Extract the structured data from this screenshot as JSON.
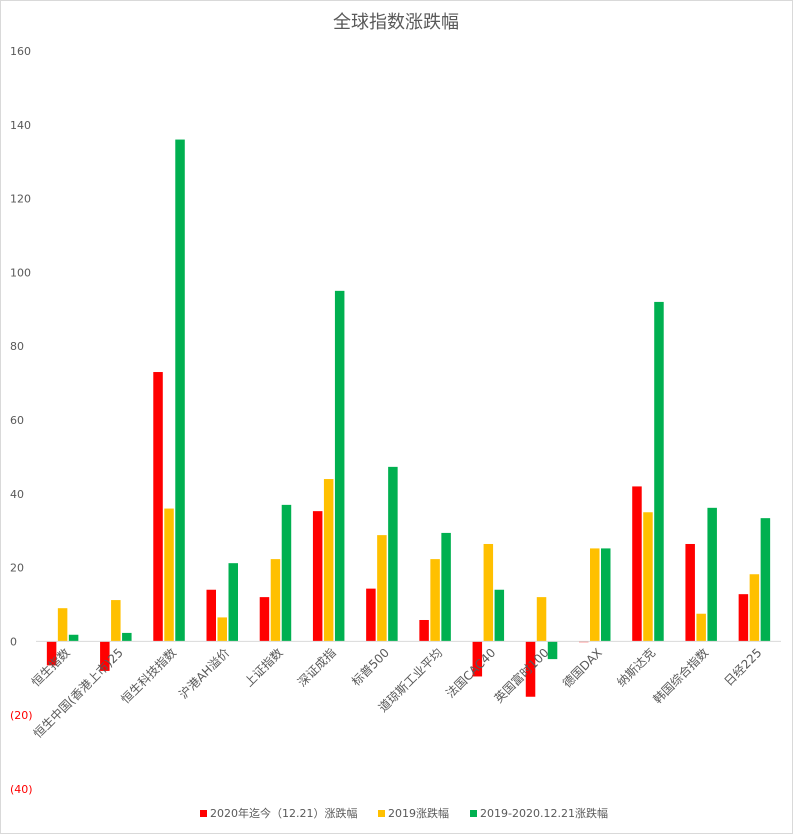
{
  "chart_data": {
    "type": "bar",
    "title": "全球指数涨跌幅",
    "categories": [
      "恒生指数",
      "恒生中国(香港上市)25",
      "恒生科技指数",
      "沪港AH溢价",
      "上证指数",
      "深证成指",
      "标普500",
      "道琼斯工业平均",
      "法国CAC40",
      "英国富时100",
      "德国DAX",
      "纳斯达克",
      "韩国综合指数",
      "日经225"
    ],
    "series": [
      {
        "name": "2020年迄今（12.21）涨跌幅",
        "color": "#ff0000",
        "values": [
          -6.5,
          -8,
          73,
          14,
          12,
          35.3,
          14.3,
          5.8,
          -9.5,
          -15,
          -0.2,
          42,
          26.4,
          12.8
        ]
      },
      {
        "name": "2019涨跌幅",
        "color": "#ffc000",
        "values": [
          9,
          11.2,
          36,
          6.5,
          22.3,
          44,
          28.8,
          22.3,
          26.4,
          12,
          25.2,
          35,
          7.5,
          18.2
        ]
      },
      {
        "name": "2019-2020.12.21涨跌幅",
        "color": "#00b050",
        "values": [
          1.8,
          2.3,
          136,
          21.2,
          37,
          95,
          47.3,
          29.4,
          14,
          -4.8,
          25.2,
          92,
          36.2,
          33.4
        ]
      }
    ],
    "ylim": [
      -40,
      160
    ],
    "yticks": [
      {
        "value": 160,
        "label": "160"
      },
      {
        "value": 140,
        "label": "140"
      },
      {
        "value": 120,
        "label": "120"
      },
      {
        "value": 100,
        "label": "100"
      },
      {
        "value": 80,
        "label": "80"
      },
      {
        "value": 60,
        "label": "60"
      },
      {
        "value": 40,
        "label": "40"
      },
      {
        "value": 20,
        "label": "20"
      },
      {
        "value": 0,
        "label": "0"
      },
      {
        "value": -20,
        "label": "(20)"
      },
      {
        "value": -40,
        "label": "(40)"
      }
    ],
    "negative_tick_color": "#ff0000",
    "grid": false,
    "legend_position": "bottom"
  }
}
